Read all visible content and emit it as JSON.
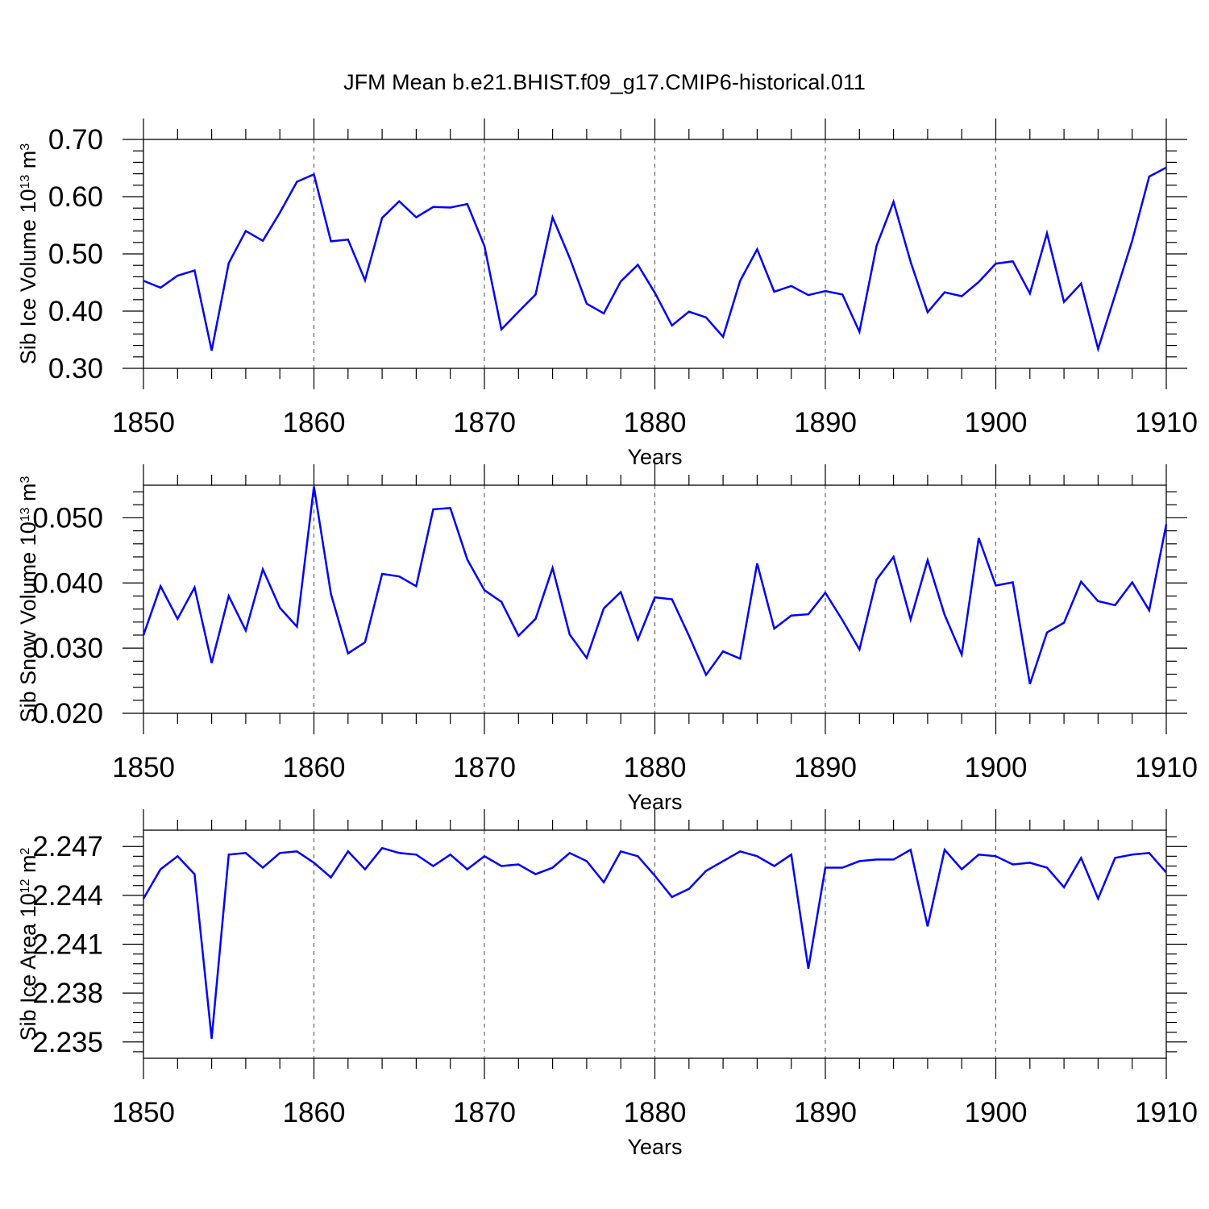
{
  "title": "JFM Mean b.e21.BHIST.f09_g17.CMIP6-historical.011",
  "colors": {
    "series": "#0000ff",
    "axes": "#000000",
    "background": "#ffffff"
  },
  "chart_data": [
    {
      "type": "line",
      "id": "ice-volume",
      "xlabel": "Years",
      "ylabel": "Sib Ice Volume 10",
      "ylabel_exp": "13",
      "ylabel_unit": " m",
      "ylabel_unit_exp": "3",
      "xlim": [
        1850,
        1910
      ],
      "ylim": [
        0.3,
        0.7
      ],
      "ytick_values": [
        0.3,
        0.4,
        0.5,
        0.6,
        0.7
      ],
      "ytick_labels": [
        "0.30",
        "0.40",
        "0.50",
        "0.60",
        "0.70"
      ],
      "xtick_values": [
        1850,
        1860,
        1870,
        1880,
        1890,
        1900,
        1910
      ],
      "xtick_labels": [
        "1850",
        "1860",
        "1870",
        "1880",
        "1890",
        "1900",
        "1910"
      ],
      "grid_x": true,
      "x": [
        1850,
        1851,
        1852,
        1853,
        1854,
        1855,
        1856,
        1857,
        1858,
        1859,
        1860,
        1861,
        1862,
        1863,
        1864,
        1865,
        1866,
        1867,
        1868,
        1869,
        1870,
        1871,
        1872,
        1873,
        1874,
        1875,
        1876,
        1877,
        1878,
        1879,
        1880,
        1881,
        1882,
        1883,
        1884,
        1885,
        1886,
        1887,
        1888,
        1889,
        1890,
        1891,
        1892,
        1893,
        1894,
        1895,
        1896,
        1897,
        1898,
        1899,
        1900,
        1901,
        1902,
        1903,
        1904,
        1905,
        1906,
        1907,
        1908,
        1909,
        1910
      ],
      "series": [
        {
          "name": "Sib Ice Volume",
          "values": [
            0.453,
            0.441,
            0.462,
            0.471,
            0.331,
            0.484,
            0.54,
            0.523,
            0.572,
            0.626,
            0.639,
            0.522,
            0.525,
            0.454,
            0.563,
            0.592,
            0.564,
            0.582,
            0.581,
            0.587,
            0.514,
            0.368,
            0.399,
            0.429,
            0.564,
            0.493,
            0.413,
            0.396,
            0.452,
            0.481,
            0.432,
            0.375,
            0.399,
            0.389,
            0.355,
            0.453,
            0.508,
            0.434,
            0.444,
            0.428,
            0.435,
            0.429,
            0.364,
            0.514,
            0.591,
            0.486,
            0.398,
            0.433,
            0.426,
            0.451,
            0.483,
            0.487,
            0.431,
            0.536,
            0.416,
            0.448,
            0.334,
            0.428,
            0.523,
            0.635,
            0.651
          ]
        }
      ]
    },
    {
      "type": "line",
      "id": "snow-volume",
      "xlabel": "Years",
      "ylabel": "Sib Snow Volume 10",
      "ylabel_exp": "13",
      "ylabel_unit": " m",
      "ylabel_unit_exp": "3",
      "xlim": [
        1850,
        1910
      ],
      "ylim": [
        0.02,
        0.055
      ],
      "ytick_values": [
        0.02,
        0.03,
        0.04,
        0.05
      ],
      "ytick_labels": [
        "0.020",
        "0.030",
        "0.040",
        "0.050"
      ],
      "xtick_values": [
        1850,
        1860,
        1870,
        1880,
        1890,
        1900,
        1910
      ],
      "xtick_labels": [
        "1850",
        "1860",
        "1870",
        "1880",
        "1890",
        "1900",
        "1910"
      ],
      "grid_x": true,
      "x": [
        1850,
        1851,
        1852,
        1853,
        1854,
        1855,
        1856,
        1857,
        1858,
        1859,
        1860,
        1861,
        1862,
        1863,
        1864,
        1865,
        1866,
        1867,
        1868,
        1869,
        1870,
        1871,
        1872,
        1873,
        1874,
        1875,
        1876,
        1877,
        1878,
        1879,
        1880,
        1881,
        1882,
        1883,
        1884,
        1885,
        1886,
        1887,
        1888,
        1889,
        1890,
        1891,
        1892,
        1893,
        1894,
        1895,
        1896,
        1897,
        1898,
        1899,
        1900,
        1901,
        1902,
        1903,
        1904,
        1905,
        1906,
        1907,
        1908,
        1909,
        1910
      ],
      "series": [
        {
          "name": "Sib Snow Volume",
          "values": [
            0.032,
            0.0395,
            0.0345,
            0.0393,
            0.0277,
            0.038,
            0.0327,
            0.0421,
            0.0362,
            0.0333,
            0.0548,
            0.0383,
            0.0292,
            0.0309,
            0.0414,
            0.041,
            0.0395,
            0.0513,
            0.0515,
            0.0436,
            0.0389,
            0.0371,
            0.0319,
            0.0345,
            0.0423,
            0.0321,
            0.0285,
            0.0361,
            0.0386,
            0.0313,
            0.0378,
            0.0375,
            0.0319,
            0.0259,
            0.0295,
            0.0284,
            0.043,
            0.033,
            0.035,
            0.0352,
            0.0385,
            0.0343,
            0.0298,
            0.0405,
            0.044,
            0.0344,
            0.0435,
            0.0351,
            0.029,
            0.0469,
            0.0396,
            0.0401,
            0.0245,
            0.0324,
            0.0339,
            0.0402,
            0.0372,
            0.0366,
            0.0401,
            0.0358,
            0.049
          ]
        }
      ]
    },
    {
      "type": "line",
      "id": "ice-area",
      "xlabel": "Years",
      "ylabel": "Sib Ice Area 10",
      "ylabel_exp": "12",
      "ylabel_unit": " m",
      "ylabel_unit_exp": "2",
      "xlim": [
        1850,
        1910
      ],
      "ylim": [
        2.234,
        2.248
      ],
      "ytick_values": [
        2.235,
        2.238,
        2.241,
        2.244,
        2.247
      ],
      "ytick_labels": [
        "2.235",
        "2.238",
        "2.241",
        "2.244",
        "2.247"
      ],
      "xtick_values": [
        1850,
        1860,
        1870,
        1880,
        1890,
        1900,
        1910
      ],
      "xtick_labels": [
        "1850",
        "1860",
        "1870",
        "1880",
        "1890",
        "1900",
        "1910"
      ],
      "grid_x": true,
      "x": [
        1850,
        1851,
        1852,
        1853,
        1854,
        1855,
        1856,
        1857,
        1858,
        1859,
        1860,
        1861,
        1862,
        1863,
        1864,
        1865,
        1866,
        1867,
        1868,
        1869,
        1870,
        1871,
        1872,
        1873,
        1874,
        1875,
        1876,
        1877,
        1878,
        1879,
        1880,
        1881,
        1882,
        1883,
        1884,
        1885,
        1886,
        1887,
        1888,
        1889,
        1890,
        1891,
        1892,
        1893,
        1894,
        1895,
        1896,
        1897,
        1898,
        1899,
        1900,
        1901,
        1902,
        1903,
        1904,
        1905,
        1906,
        1907,
        1908,
        1909,
        1910
      ],
      "series": [
        {
          "name": "Sib Ice Area",
          "values": [
            2.2438,
            2.2456,
            2.2464,
            2.2453,
            2.2352,
            2.2465,
            2.2466,
            2.2457,
            2.2466,
            2.2467,
            2.246,
            2.2451,
            2.2467,
            2.2456,
            2.2469,
            2.2466,
            2.2465,
            2.2458,
            2.2465,
            2.2456,
            2.2464,
            2.2458,
            2.2459,
            2.2453,
            2.2457,
            2.2466,
            2.2461,
            2.2448,
            2.2467,
            2.2464,
            2.2452,
            2.2439,
            2.2444,
            2.2455,
            2.2461,
            2.2467,
            2.2464,
            2.2458,
            2.2465,
            2.2395,
            2.2457,
            2.2457,
            2.2461,
            2.2462,
            2.2462,
            2.2468,
            2.2421,
            2.2468,
            2.2456,
            2.2465,
            2.2464,
            2.2459,
            2.246,
            2.2457,
            2.2445,
            2.2463,
            2.2438,
            2.2463,
            2.2465,
            2.2466,
            2.2454
          ]
        }
      ]
    }
  ]
}
